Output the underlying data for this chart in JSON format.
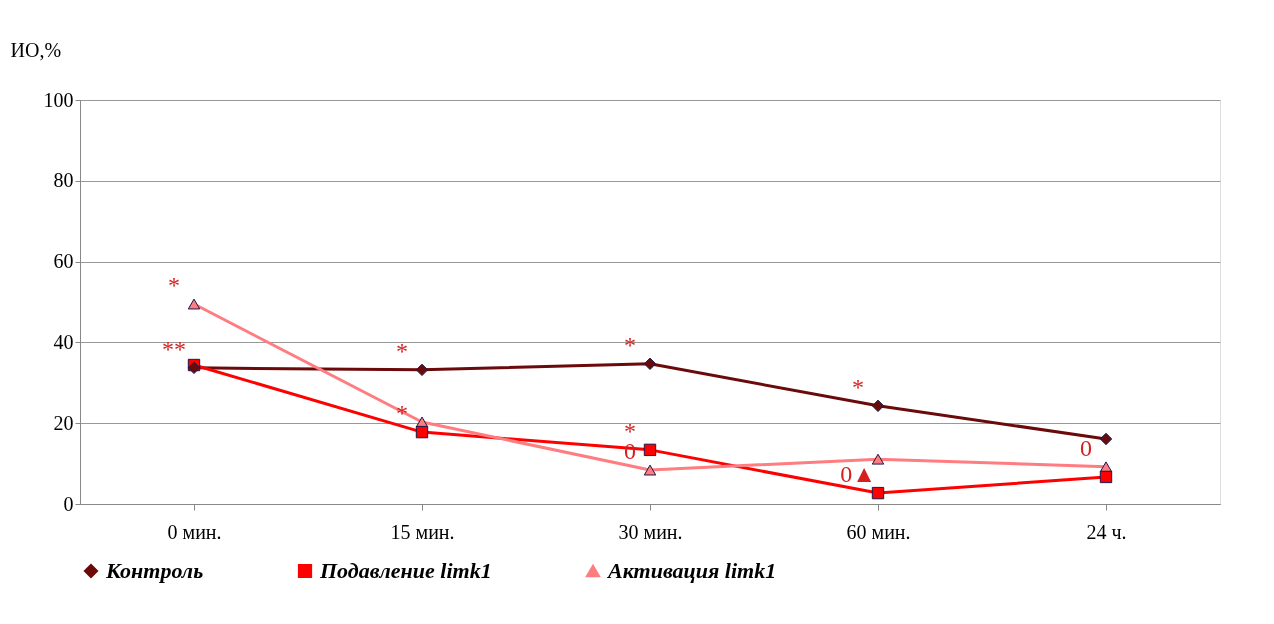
{
  "chart_data": {
    "type": "line",
    "ylabel": "ИО,%",
    "categories": [
      "0 мин.",
      "15 мин.",
      "30 мин.",
      "60 мин.",
      "24 ч."
    ],
    "series": [
      {
        "name": "Контроль",
        "color": "#6b0a0a",
        "marker": "diamond",
        "values": [
          33.7,
          33.2,
          34.7,
          24.3,
          16.1
        ]
      },
      {
        "name": "Подавление limk1",
        "color": "#ff0000",
        "marker": "square",
        "values": [
          34.4,
          17.8,
          13.4,
          2.7,
          6.7
        ]
      },
      {
        "name": "Активация limk1",
        "color": "#ff7c80",
        "marker": "triangle",
        "values": [
          49.5,
          20.3,
          8.4,
          11.1,
          9.2
        ]
      }
    ],
    "ylim": [
      0,
      100
    ],
    "yticks": [
      0,
      20,
      40,
      60,
      80,
      100
    ],
    "grid": "y",
    "legend": "bottom",
    "line_style": "solid",
    "annotations": [
      {
        "text": "**",
        "x": "0 мин.",
        "y": 33.7
      },
      {
        "text": "*",
        "x": "0 мин.",
        "y": 49.5
      },
      {
        "text": "*",
        "x": "15 мин.",
        "y": 33.2
      },
      {
        "text": "*",
        "x": "15 мин.",
        "y": 17.8
      },
      {
        "text": "*",
        "x": "30 мин.",
        "y": 34.7
      },
      {
        "text": "*",
        "x": "30 мин.",
        "y": 13.4
      },
      {
        "text": "0",
        "x": "30 мин.",
        "y": 8.4
      },
      {
        "text": "*",
        "x": "60 мин.",
        "y": 24.3
      },
      {
        "text": "0▲",
        "x": "60 мин.",
        "y": 2.7
      },
      {
        "text": "0",
        "x": "24 ч.",
        "y": 9.2
      }
    ]
  }
}
